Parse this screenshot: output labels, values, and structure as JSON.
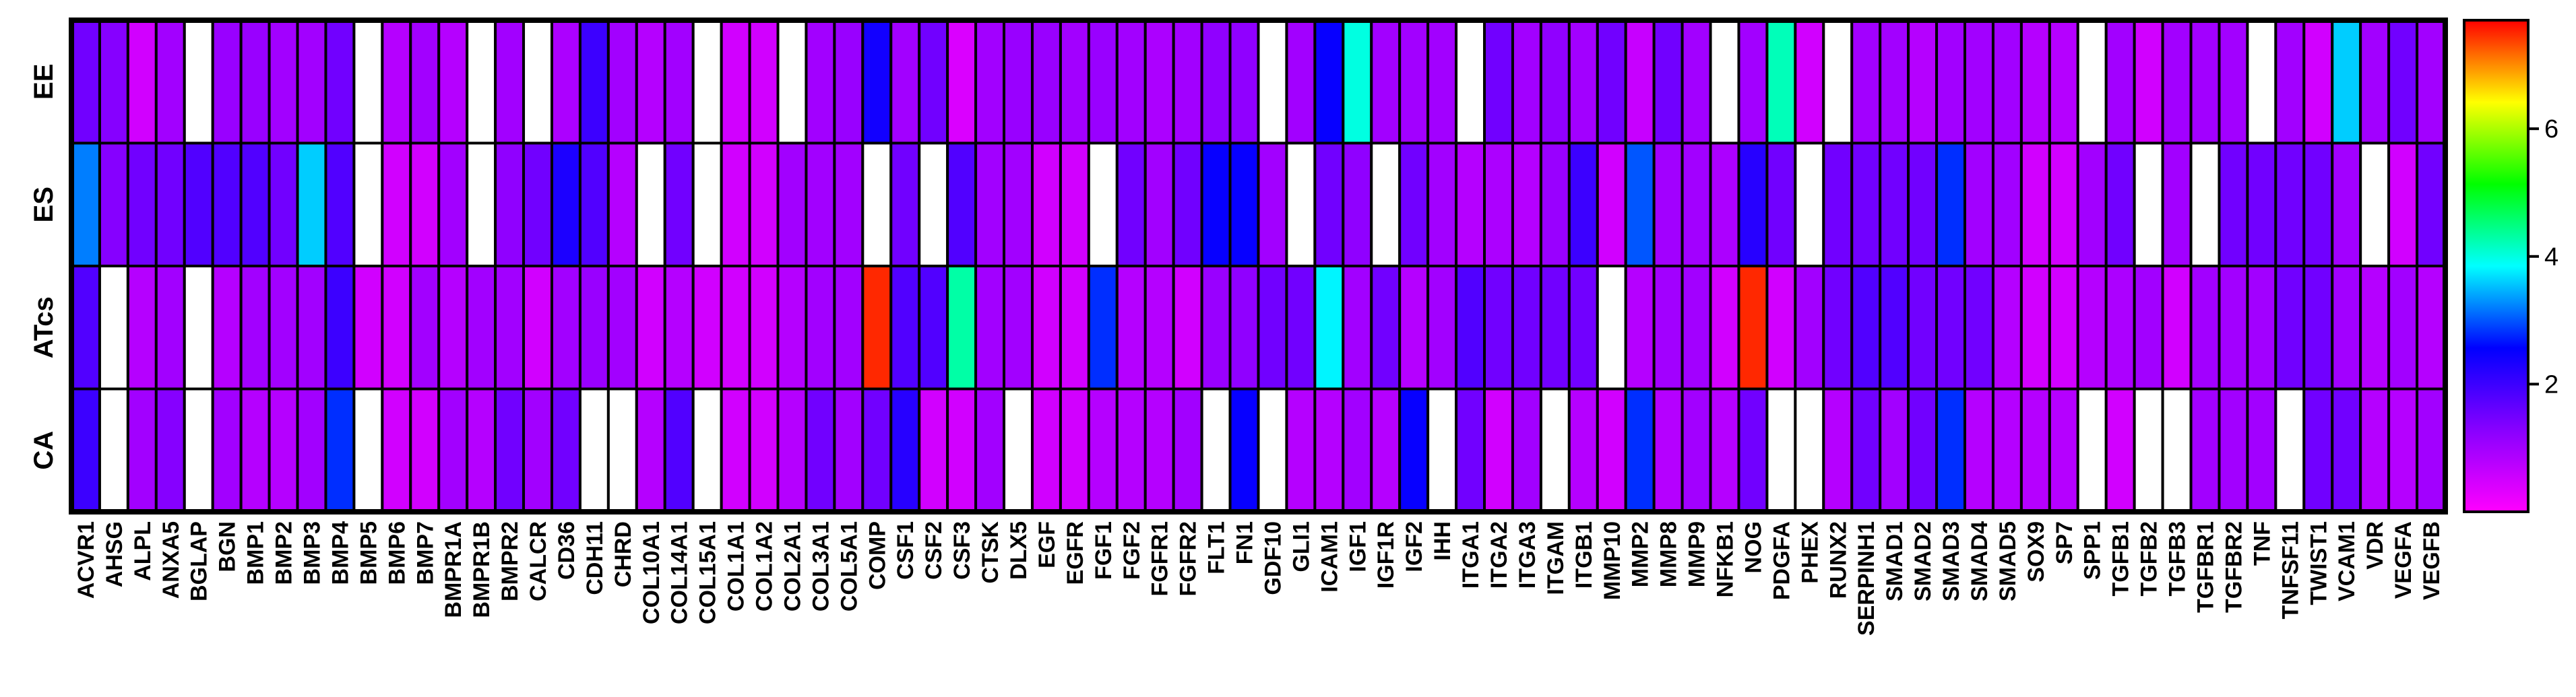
{
  "chart_data": {
    "type": "heatmap",
    "title": "",
    "xlabel": "",
    "ylabel": "",
    "rows": [
      "EE",
      "ES",
      "ATcs",
      "CA"
    ],
    "columns": [
      "ACVR1",
      "AHSG",
      "ALPL",
      "ANXA5",
      "BGLAP",
      "BGN",
      "BMP1",
      "BMP2",
      "BMP3",
      "BMP4",
      "BMP5",
      "BMP6",
      "BMP7",
      "BMPR1A",
      "BMPR1B",
      "BMPR2",
      "CALCR",
      "CD36",
      "CDH11",
      "CHRD",
      "COL10A1",
      "COL14A1",
      "COL15A1",
      "COL1A1",
      "COL1A2",
      "COL2A1",
      "COL3A1",
      "COL5A1",
      "COMP",
      "CSF1",
      "CSF2",
      "CSF3",
      "CTSK",
      "DLX5",
      "EGF",
      "EGFR",
      "FGF1",
      "FGF2",
      "FGFR1",
      "FGFR2",
      "FLT1",
      "FN1",
      "GDF10",
      "GLI1",
      "ICAM1",
      "IGF1",
      "IGF1R",
      "IGF2",
      "IHH",
      "ITGA1",
      "ITGA2",
      "ITGA3",
      "ITGAM",
      "ITGB1",
      "MMP10",
      "MMP2",
      "MMP8",
      "MMP9",
      "NFKB1",
      "NOG",
      "PDGFA",
      "PHEX",
      "RUNX2",
      "SERPINH1",
      "SMAD1",
      "SMAD2",
      "SMAD3",
      "SMAD4",
      "SMAD5",
      "SOX9",
      "SP7",
      "SPP1",
      "TGFB1",
      "TGFB2",
      "TGFB3",
      "TGFBR1",
      "TGFBR2",
      "TNF",
      "TNFSF11",
      "TWIST1",
      "VCAM1",
      "VDR",
      "VEGFA",
      "VEGFB"
    ],
    "values": [
      [
        1.5,
        1.3,
        0.5,
        1.0,
        null,
        1.1,
        1.1,
        1.0,
        1.0,
        1.5,
        null,
        0.8,
        1.0,
        0.8,
        null,
        1.0,
        null,
        0.9,
        2.0,
        1.0,
        0.8,
        1.0,
        null,
        0.5,
        0.5,
        null,
        1.0,
        1.1,
        2.4,
        1.0,
        1.5,
        0.4,
        1.0,
        1.1,
        1.1,
        1.0,
        1.1,
        1.0,
        0.9,
        1.0,
        1.2,
        1.2,
        null,
        1.0,
        2.5,
        4.0,
        1.0,
        1.0,
        1.0,
        null,
        1.5,
        1.0,
        1.2,
        1.0,
        1.5,
        0.6,
        1.5,
        1.0,
        null,
        1.0,
        4.2,
        0.5,
        null,
        1.0,
        1.0,
        0.8,
        1.0,
        1.0,
        1.0,
        0.8,
        0.8,
        null,
        1.0,
        0.5,
        1.0,
        1.0,
        1.0,
        null,
        1.0,
        0.5,
        3.6,
        1.0,
        1.5,
        1.0
      ],
      [
        3.2,
        1.3,
        1.5,
        1.5,
        1.8,
        1.8,
        1.8,
        1.5,
        3.6,
        1.8,
        null,
        0.5,
        0.5,
        1.0,
        null,
        1.2,
        1.5,
        2.3,
        1.8,
        0.8,
        null,
        1.5,
        null,
        0.5,
        0.5,
        1.0,
        1.0,
        1.0,
        null,
        1.5,
        null,
        1.8,
        1.0,
        1.0,
        0.5,
        0.5,
        null,
        1.5,
        1.0,
        1.5,
        2.5,
        2.5,
        1.0,
        null,
        1.5,
        1.2,
        null,
        1.5,
        1.0,
        0.8,
        0.9,
        0.8,
        1.1,
        2.0,
        0.5,
        3.0,
        1.0,
        1.0,
        0.9,
        2.2,
        1.5,
        null,
        1.5,
        1.5,
        1.5,
        1.5,
        2.8,
        1.0,
        1.0,
        0.5,
        0.5,
        1.0,
        1.5,
        null,
        1.0,
        null,
        1.5,
        1.5,
        1.5,
        1.5,
        1.0,
        null,
        0.5,
        1.5
      ],
      [
        1.8,
        null,
        0.8,
        1.0,
        null,
        0.8,
        1.0,
        1.0,
        1.0,
        2.0,
        0.5,
        0.5,
        1.0,
        0.8,
        1.0,
        1.0,
        0.5,
        1.0,
        1.1,
        1.0,
        0.5,
        0.8,
        0.5,
        0.5,
        0.5,
        0.8,
        1.0,
        1.0,
        7.5,
        1.8,
        1.8,
        4.3,
        1.0,
        1.0,
        0.5,
        0.5,
        2.8,
        0.8,
        0.8,
        0.5,
        1.1,
        1.2,
        1.5,
        1.5,
        3.8,
        1.0,
        1.5,
        0.8,
        1.0,
        1.8,
        1.5,
        1.5,
        1.5,
        1.5,
        null,
        0.8,
        1.0,
        1.0,
        0.5,
        7.5,
        0.5,
        1.0,
        1.5,
        1.8,
        1.8,
        1.5,
        1.5,
        1.5,
        0.8,
        0.5,
        0.5,
        0.8,
        0.9,
        1.0,
        0.5,
        1.0,
        1.0,
        1.0,
        1.5,
        1.5,
        1.0,
        0.8,
        1.0,
        0.8
      ],
      [
        2.0,
        null,
        1.0,
        1.3,
        null,
        1.0,
        0.8,
        0.8,
        1.0,
        2.8,
        null,
        0.5,
        0.5,
        1.0,
        0.8,
        1.5,
        1.0,
        1.5,
        null,
        null,
        0.8,
        1.8,
        null,
        0.5,
        0.5,
        0.8,
        1.5,
        1.0,
        1.5,
        2.2,
        0.5,
        0.5,
        1.0,
        null,
        0.5,
        0.5,
        0.8,
        0.8,
        0.8,
        1.0,
        null,
        2.5,
        null,
        0.8,
        0.8,
        1.0,
        0.8,
        2.5,
        null,
        1.5,
        0.5,
        1.0,
        null,
        0.8,
        0.5,
        2.8,
        0.8,
        1.0,
        0.8,
        1.5,
        null,
        null,
        0.8,
        1.5,
        1.0,
        1.5,
        2.8,
        0.8,
        0.8,
        0.8,
        0.8,
        null,
        0.5,
        null,
        null,
        1.0,
        1.0,
        1.0,
        null,
        1.5,
        1.5,
        0.8,
        0.8,
        1.0
      ]
    ],
    "empty_cell_meaning": "not detected",
    "colorbar": {
      "min": 0,
      "max": 7.7,
      "ticks": [
        2,
        4,
        6
      ],
      "tick_labels": [
        "2",
        "4",
        "6"
      ],
      "stops": [
        "#ff00ff",
        "#8800ff",
        "#0000ff",
        "#00ffff",
        "#00ff00",
        "#ffff00",
        "#ff0000"
      ]
    },
    "legend_position": "right"
  }
}
